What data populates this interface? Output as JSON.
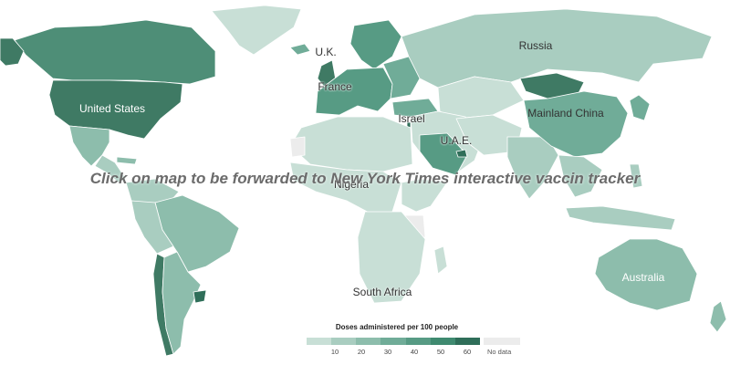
{
  "overlay_text": "Click on map to be forwarded to New York Times interactive vaccin tracker",
  "legend": {
    "title": "Doses administered per 100 people",
    "ticks": [
      "10",
      "20",
      "30",
      "40",
      "50",
      "60"
    ],
    "no_data": "No data",
    "colors": [
      "#c8dfd6",
      "#a9cdc0",
      "#8dbdac",
      "#70ac98",
      "#579b84",
      "#3f8a70",
      "#2f6e59"
    ],
    "no_data_color": "#ececec"
  },
  "labels": {
    "uk": "U.K.",
    "russia": "Russia",
    "france": "France",
    "united_states": "United States",
    "israel": "Israel",
    "uae": "U.A.E.",
    "mainland_china": "Mainland China",
    "nigeria": "Nigeria",
    "australia": "Australia",
    "south_africa": "South Africa"
  }
}
